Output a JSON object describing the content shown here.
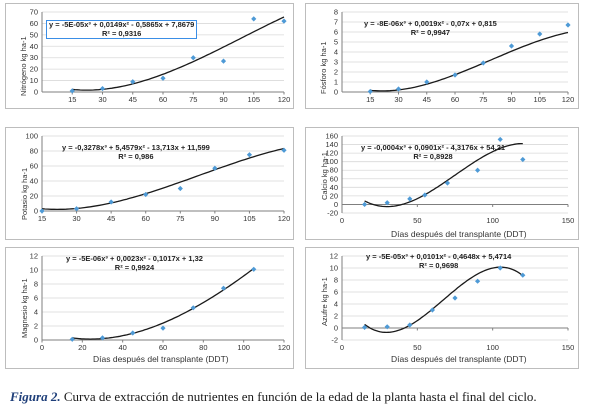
{
  "caption": {
    "label": "Figura 2.",
    "text": "Curva de extracción de nutrientes en función de la edad de la planta hasta el final del ciclo."
  },
  "colors": {
    "point": "#4e9ad6",
    "curve": "#1a1a1a",
    "axis": "#7f7f7f",
    "grid": "#d9d9d9",
    "eq_box": "#3a8ee6"
  },
  "chart_data": [
    {
      "type": "scatter",
      "panel": "nitrogeno",
      "ylabel": "Nitrógeno kg ha-1",
      "xlabel": "",
      "equation": "y = -5E-05x³ + 0,0149x² - 0,5865x + 7,8679",
      "r2": "R² = 0,9316",
      "xlim": [
        0,
        120
      ],
      "ylim": [
        0,
        70
      ],
      "xticks": [
        15,
        30,
        45,
        60,
        75,
        90,
        105,
        120
      ],
      "yticks": [
        0,
        10,
        20,
        30,
        40,
        50,
        60,
        70
      ],
      "grid": true,
      "points": [
        [
          15,
          1
        ],
        [
          30,
          3
        ],
        [
          45,
          9
        ],
        [
          60,
          12
        ],
        [
          75,
          30
        ],
        [
          90,
          27
        ],
        [
          105,
          64
        ],
        [
          120,
          62
        ]
      ],
      "curve": {
        "a": -5e-05,
        "b": 0.0149,
        "c": -0.5865,
        "d": 7.8679,
        "from": 15,
        "to": 120
      }
    },
    {
      "type": "scatter",
      "panel": "fosforo",
      "ylabel": "Fósforo kg ha-1",
      "xlabel": "",
      "equation": "y = -8E-06x³ + 0,0019x² - 0,07x + 0,815",
      "r2": "R² = 0,9947",
      "xlim": [
        0,
        120
      ],
      "ylim": [
        0,
        8
      ],
      "xticks": [
        15,
        30,
        45,
        60,
        75,
        90,
        105,
        120
      ],
      "yticks": [
        0,
        1,
        2,
        3,
        4,
        5,
        6,
        7,
        8
      ],
      "grid": true,
      "points": [
        [
          15,
          0.05
        ],
        [
          30,
          0.3
        ],
        [
          45,
          1.0
        ],
        [
          60,
          1.7
        ],
        [
          75,
          2.9
        ],
        [
          90,
          4.6
        ],
        [
          105,
          5.8
        ],
        [
          120,
          6.7
        ]
      ],
      "curve": {
        "a": -8e-06,
        "b": 0.0019,
        "c": -0.07,
        "d": 0.815,
        "from": 15,
        "to": 120
      }
    },
    {
      "type": "scatter",
      "panel": "potasio",
      "ylabel": "Potasio kg ha-1",
      "xlabel": "",
      "equation": "y = -0,3278x³ + 5,4579x² - 13,713x + 11,599",
      "r2": "R² = 0,986",
      "xlim": [
        15,
        120
      ],
      "ylim": [
        0,
        100
      ],
      "xticks": [
        15,
        30,
        45,
        60,
        75,
        90,
        105,
        120
      ],
      "yticks": [
        0,
        20,
        40,
        60,
        80,
        100
      ],
      "grid": true,
      "points": [
        [
          15,
          0
        ],
        [
          30,
          3
        ],
        [
          45,
          12
        ],
        [
          60,
          22
        ],
        [
          75,
          30
        ],
        [
          90,
          57
        ],
        [
          105,
          75
        ],
        [
          120,
          81
        ]
      ],
      "curve": {
        "a": -0.3278,
        "b": 5.4579,
        "c": -13.713,
        "d": 11.599,
        "from": 15,
        "to": 120,
        "index_x": true
      }
    },
    {
      "type": "scatter",
      "panel": "calcio",
      "ylabel": "Calcio kg ha-1",
      "xlabel": "Días después del transplante (DDT)",
      "equation": "y = -0,0004x³ + 0,0901x² - 4,3176x + 54,21",
      "r2": "R² = 0,8928",
      "xlim": [
        0,
        150
      ],
      "ylim": [
        -20,
        160
      ],
      "xticks": [
        0,
        50,
        100,
        150
      ],
      "yticks": [
        -20,
        0,
        20,
        40,
        60,
        80,
        100,
        120,
        140,
        160
      ],
      "grid": true,
      "points": [
        [
          15,
          0
        ],
        [
          30,
          4
        ],
        [
          45,
          13
        ],
        [
          55,
          22
        ],
        [
          70,
          50
        ],
        [
          90,
          80
        ],
        [
          105,
          152
        ],
        [
          120,
          105
        ]
      ],
      "curve": {
        "a": -0.0004,
        "b": 0.0901,
        "c": -4.3176,
        "d": 54.21,
        "from": 15,
        "to": 120
      }
    },
    {
      "type": "scatter",
      "panel": "magnesio",
      "ylabel": "Magnesio kg ha-1",
      "xlabel": "Días después del transplante (DDT)",
      "equation": "y = -5E-06x³ + 0,0023x² - 0,1017x + 1,32",
      "r2": "R² = 0,9924",
      "xlim": [
        0,
        120
      ],
      "ylim": [
        0,
        12
      ],
      "xticks": [
        0,
        20,
        40,
        60,
        80,
        100,
        120
      ],
      "yticks": [
        0,
        2,
        4,
        6,
        8,
        10,
        12
      ],
      "grid": true,
      "points": [
        [
          15,
          0.1
        ],
        [
          30,
          0.3
        ],
        [
          45,
          1.0
        ],
        [
          60,
          1.7
        ],
        [
          75,
          4.6
        ],
        [
          90,
          7.4
        ],
        [
          105,
          10.1
        ]
      ],
      "curve": {
        "a": -5e-06,
        "b": 0.0023,
        "c": -0.1017,
        "d": 1.32,
        "from": 15,
        "to": 105
      }
    },
    {
      "type": "scatter",
      "panel": "azufre",
      "ylabel": "Azufre kg ha-1",
      "xlabel": "Días después del transplante (DDT)",
      "equation": "y = -5E-05x³ + 0,0101x² - 0,4648x + 5,4714",
      "r2": "R² = 0,9698",
      "xlim": [
        0,
        150
      ],
      "ylim": [
        -2,
        12
      ],
      "xticks": [
        0,
        50,
        100,
        150
      ],
      "yticks": [
        -2,
        0,
        2,
        4,
        6,
        8,
        10,
        12
      ],
      "grid": true,
      "points": [
        [
          15,
          0.1
        ],
        [
          30,
          0.2
        ],
        [
          45,
          0.5
        ],
        [
          60,
          3.0
        ],
        [
          75,
          5.0
        ],
        [
          90,
          7.8
        ],
        [
          105,
          10
        ],
        [
          120,
          8.8
        ]
      ],
      "curve": {
        "a": -5e-05,
        "b": 0.0101,
        "c": -0.4648,
        "d": 5.4714,
        "from": 15,
        "to": 120
      }
    }
  ]
}
